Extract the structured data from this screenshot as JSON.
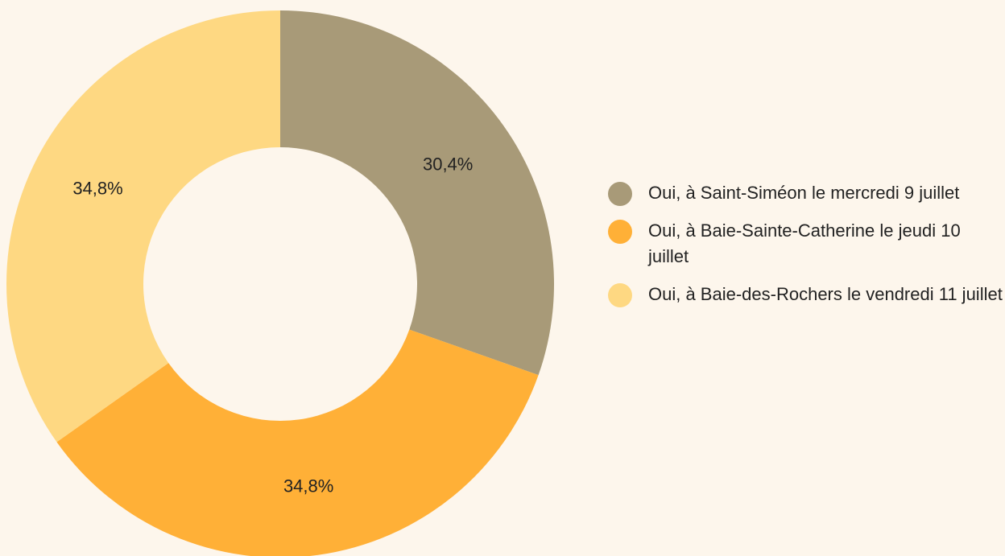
{
  "chart_data": {
    "type": "donut",
    "categories": [
      "Oui, à Saint-Siméon le mercredi 9 juillet",
      "Oui, à Baie-Sainte-Catherine le jeudi 10 juillet",
      "Oui, à Baie-des-Rochers le vendredi 11 juillet"
    ],
    "values": [
      30.4,
      34.8,
      34.8
    ],
    "value_labels": [
      "30,4%",
      "34,8%",
      "34,8%"
    ],
    "colors": [
      "#a89a78",
      "#ffb037",
      "#fed882"
    ],
    "legend": "right"
  }
}
